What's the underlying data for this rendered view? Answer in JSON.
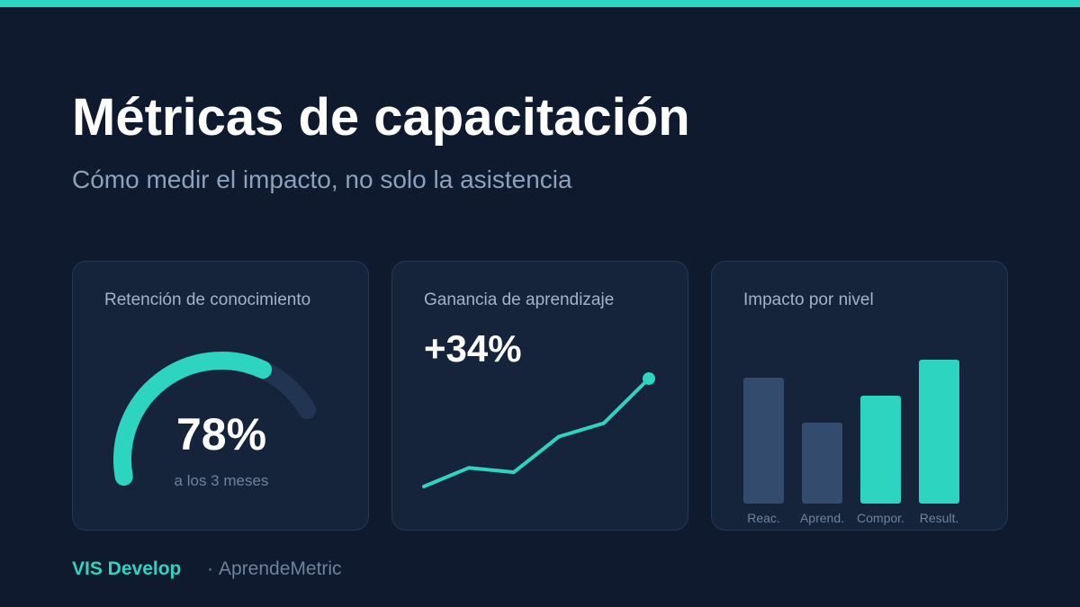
{
  "header": {
    "title": "Métricas de capacitación",
    "subtitle": "Cómo medir el impacto, no solo la asistencia"
  },
  "colors": {
    "background": "#0f1a2e",
    "card": "#16243b",
    "accent": "#2dd4bf",
    "muted_bar": "#334c6e",
    "track": "#213451"
  },
  "cards": {
    "retention": {
      "label": "Retención de conocimiento",
      "value_text": "78%",
      "caption": "a los 3 meses"
    },
    "gain": {
      "label": "Ganancia de aprendizaje",
      "value_text": "+34%"
    },
    "impact": {
      "label": "Impacto por nivel"
    }
  },
  "footer": {
    "brand": "VIS Develop",
    "separator": "·",
    "product": "AprendeMetric"
  },
  "chart_data": [
    {
      "type": "gauge",
      "title": "Retención de conocimiento",
      "value": 78,
      "min": 0,
      "max": 100,
      "unit": "%"
    },
    {
      "type": "line",
      "title": "Ganancia de aprendizaje",
      "x": [
        1,
        2,
        3,
        4,
        5,
        6
      ],
      "values": [
        0,
        21,
        16,
        56,
        71,
        121
      ],
      "ylim": [
        0,
        121
      ],
      "end_marker": true,
      "grid": false
    },
    {
      "type": "bar",
      "title": "Impacto por nivel",
      "categories": [
        "Reac.",
        "Aprend.",
        "Compor.",
        "Result."
      ],
      "values": [
        70,
        45,
        60,
        80
      ],
      "highlight": [
        false,
        false,
        true,
        true
      ],
      "ylim": [
        0,
        80
      ],
      "grid": false
    }
  ]
}
